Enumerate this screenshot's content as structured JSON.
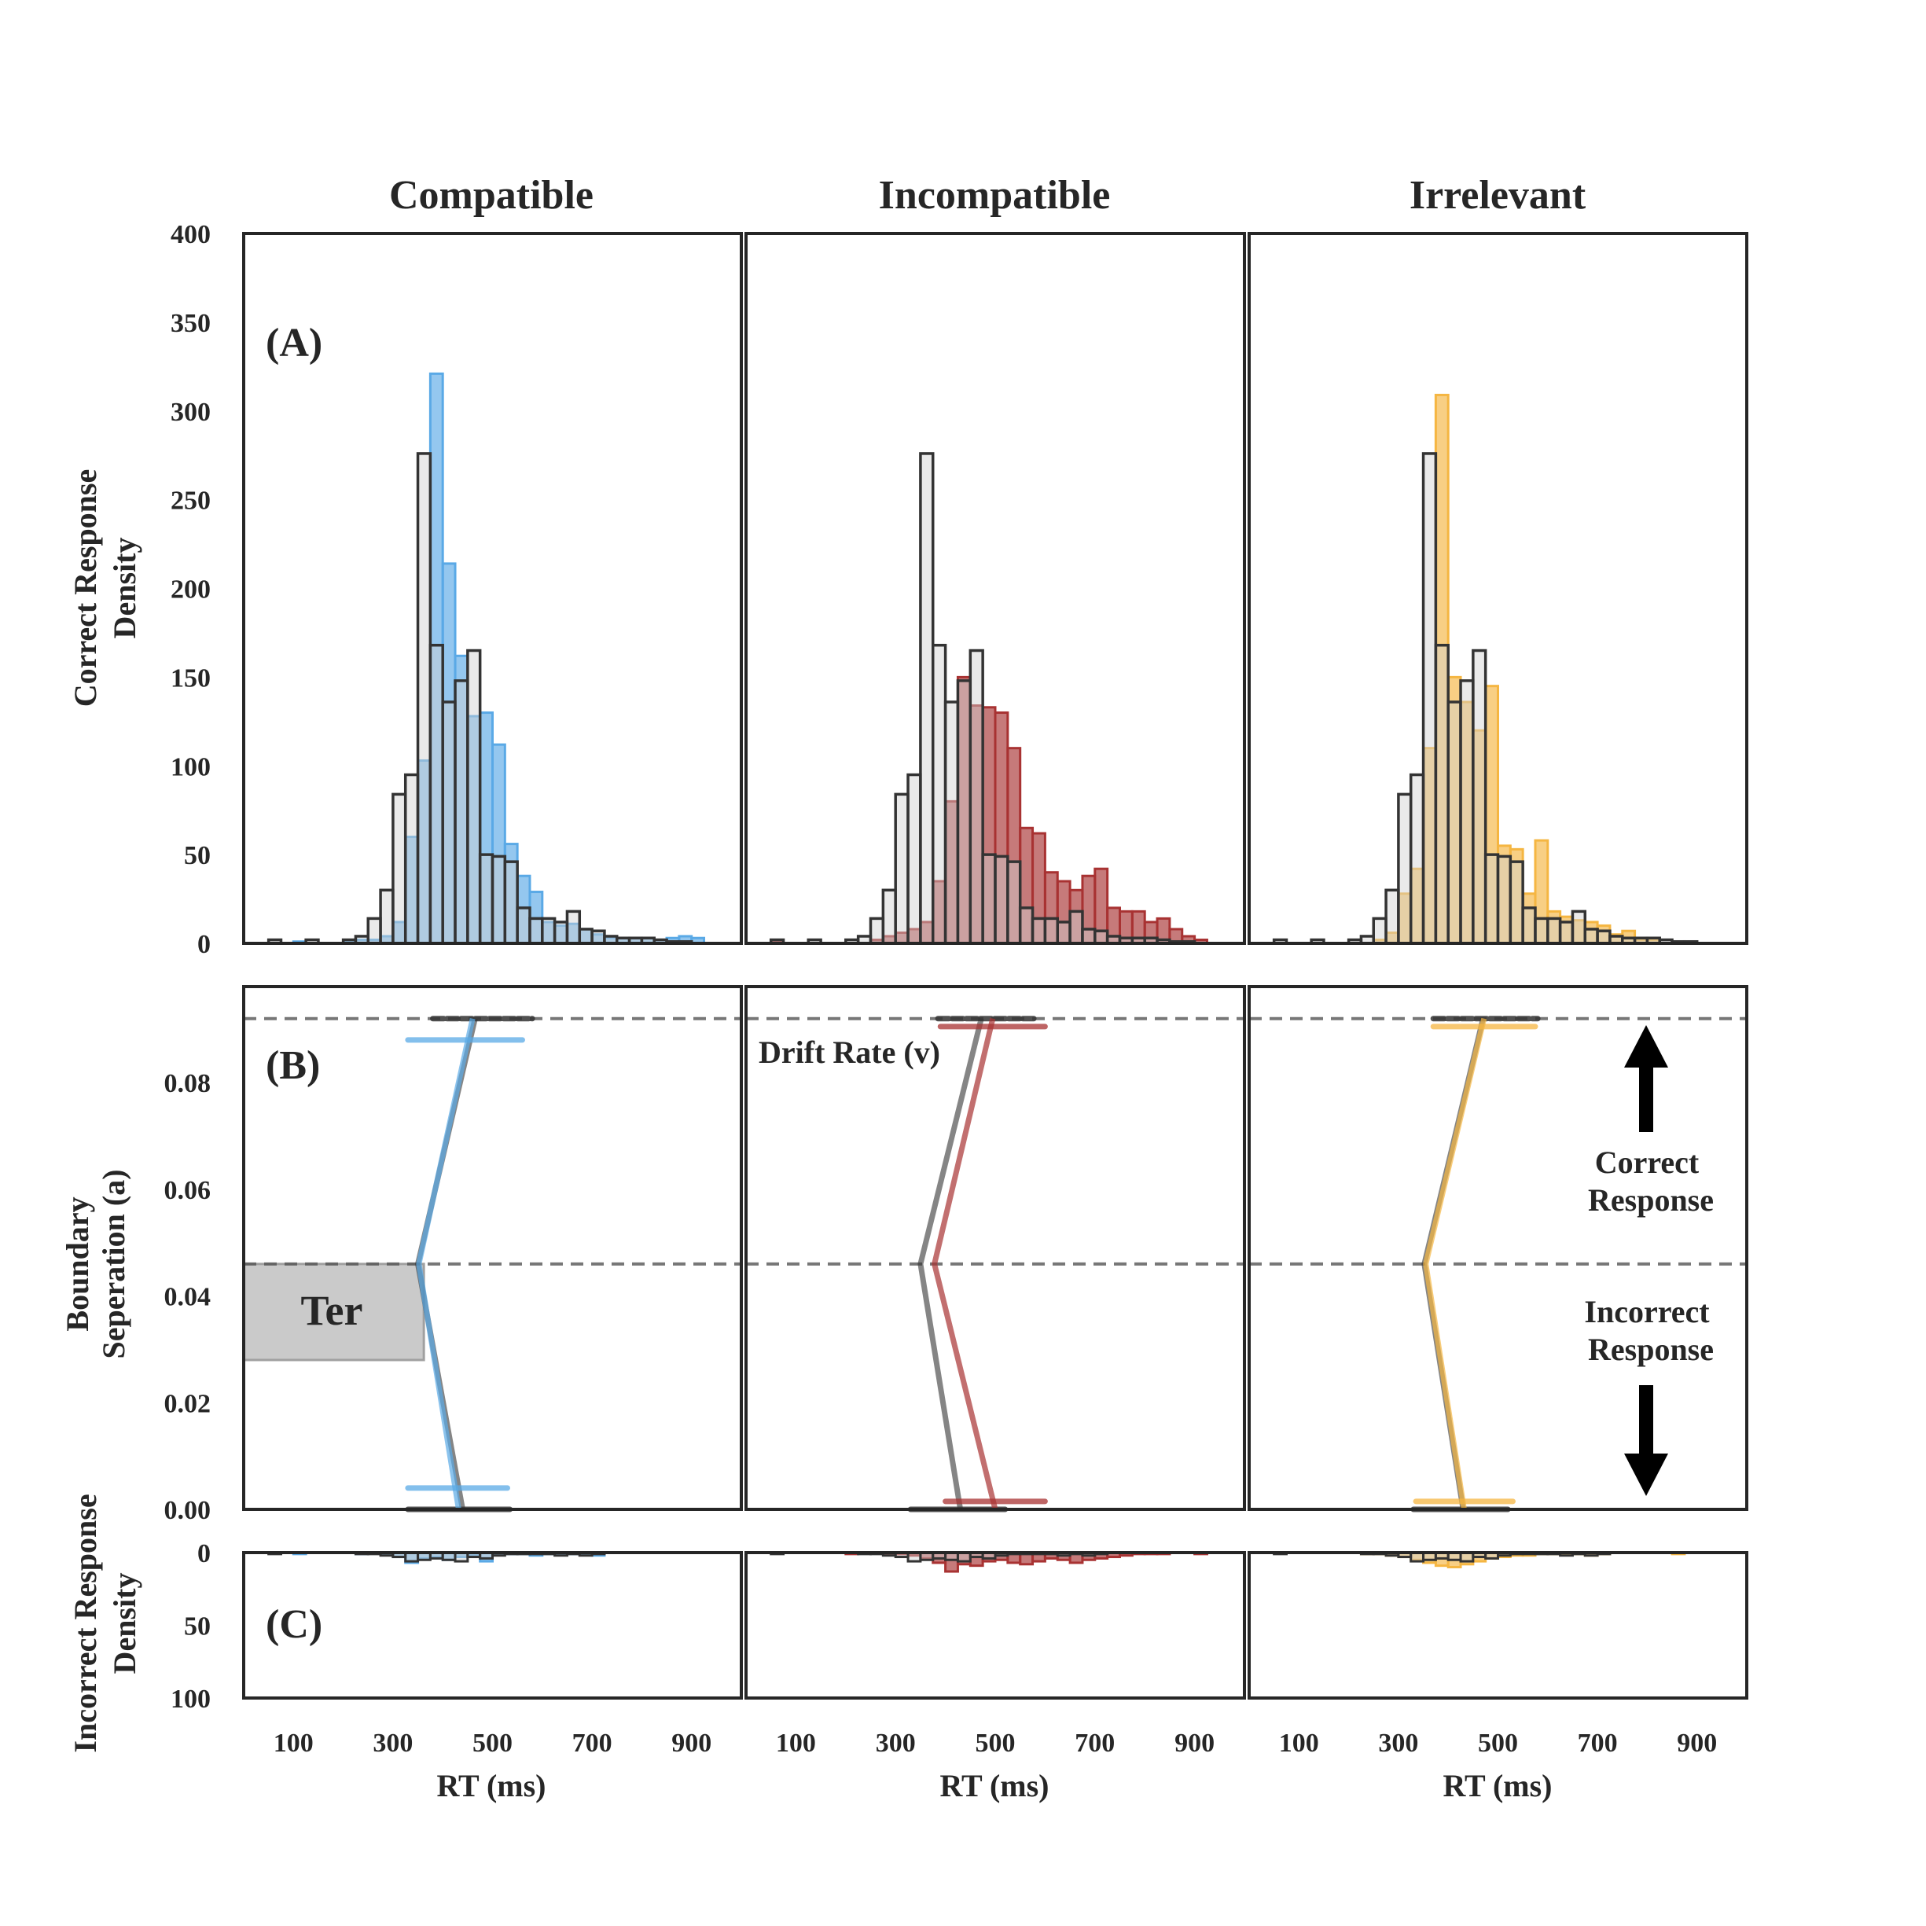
{
  "columns": [
    "Compatible",
    "Incompatible",
    "Irrelevant"
  ],
  "panel_labels": [
    "(A)",
    "(B)",
    "(C)"
  ],
  "annotations": {
    "drift_rate": "Drift Rate (v)",
    "correct_response": [
      "Correct",
      "Response"
    ],
    "incorrect_response": [
      "Incorrect",
      "Response"
    ],
    "ter": "Ter"
  },
  "colors": {
    "compatible": "#5aa9e6",
    "incompatible": "#a83232",
    "irrelevant": "#f5b642",
    "reference": "#d0d0d0",
    "reference_edge": "#333333",
    "ter_box": "#bdbdbd"
  },
  "chart_data": [
    {
      "type": "bar",
      "panel": "A",
      "ylabel": [
        "Correct Response",
        "Density"
      ],
      "xlim": [
        0,
        1000
      ],
      "ylim": [
        0,
        400
      ],
      "yticks": [
        0,
        50,
        100,
        150,
        200,
        250,
        300,
        350,
        400
      ],
      "bin_width": 25,
      "bin_starts": [
        50,
        75,
        100,
        125,
        150,
        175,
        200,
        225,
        250,
        275,
        300,
        325,
        350,
        375,
        400,
        425,
        450,
        475,
        500,
        525,
        550,
        575,
        600,
        625,
        650,
        675,
        700,
        725,
        750,
        775,
        800,
        825,
        850,
        875,
        900,
        925,
        950
      ],
      "series": [
        {
          "name": "Compatible",
          "values": [
            0,
            0,
            1,
            0,
            0,
            0,
            1,
            2,
            2,
            4,
            12,
            60,
            103,
            321,
            214,
            162,
            128,
            130,
            112,
            56,
            38,
            29,
            12,
            10,
            11,
            8,
            5,
            3,
            3,
            3,
            3,
            2,
            3,
            4,
            3,
            0,
            0
          ]
        },
        {
          "name": "Incompatible",
          "values": [
            1,
            0,
            0,
            0,
            0,
            0,
            0,
            0,
            2,
            4,
            6,
            8,
            12,
            35,
            80,
            150,
            134,
            133,
            130,
            110,
            65,
            62,
            40,
            35,
            30,
            38,
            42,
            20,
            18,
            18,
            12,
            14,
            8,
            4,
            2,
            0,
            0
          ]
        },
        {
          "name": "Irrelevant",
          "values": [
            0,
            0,
            0,
            0,
            0,
            0,
            0,
            0,
            2,
            6,
            28,
            42,
            110,
            309,
            150,
            136,
            120,
            145,
            55,
            53,
            28,
            58,
            18,
            15,
            13,
            12,
            10,
            5,
            7,
            2,
            2,
            0,
            0,
            0,
            0,
            0,
            0
          ]
        },
        {
          "name": "",
          "values": [
            2,
            0,
            0,
            2,
            0,
            0,
            2,
            4,
            14,
            30,
            84,
            95,
            276,
            168,
            136,
            148,
            165,
            50,
            49,
            46,
            20,
            14,
            14,
            12,
            18,
            8,
            7,
            4,
            3,
            3,
            3,
            2,
            1,
            1,
            0,
            0,
            0
          ]
        }
      ]
    },
    {
      "type": "line",
      "panel": "B",
      "ylabel": [
        "Boundary",
        "Seperation (a)"
      ],
      "xlim": [
        0,
        1000
      ],
      "ylim": [
        0,
        0.098
      ],
      "yticks": [
        0.0,
        0.02,
        0.04,
        0.06,
        0.08
      ],
      "ytick_labels": [
        "0.00",
        "0.02",
        "0.04",
        "0.06",
        "0.08"
      ],
      "upper_boundary": 0.092,
      "starting_point": 0.046,
      "ter_box": {
        "x": [
          0,
          362
        ],
        "y": [
          0.028,
          0.046
        ]
      },
      "series": [
        {
          "name": "Compatible",
          "x": [
            460,
            352,
            432
          ],
          "y": [
            0.092,
            0.046,
            0.0
          ],
          "upper_error_y": 0.088,
          "upper_error_x": [
            330,
            560
          ],
          "lower_error_y": 0.004,
          "lower_error_x": [
            330,
            530
          ]
        },
        {
          "name": "",
          "x": [
            465,
            350,
            440
          ],
          "y": [
            0.092,
            0.046,
            0.0
          ],
          "upper_error_y": 0.092,
          "upper_error_x": [
            380,
            580
          ],
          "lower_error_y": 0.0,
          "lower_error_x": [
            330,
            535
          ]
        },
        {
          "name": "Incompatible",
          "x": [
            495,
            378,
            500
          ],
          "y": [
            0.092,
            0.046,
            0.0
          ],
          "upper_error_y": 0.0905,
          "upper_error_x": [
            390,
            600
          ],
          "lower_error_y": 0.0015,
          "lower_error_x": [
            400,
            600
          ]
        },
        {
          "name": "",
          "x": [
            472,
            350,
            430
          ],
          "y": [
            0.092,
            0.046,
            0.0
          ],
          "upper_error_y": 0.092,
          "upper_error_x": [
            385,
            580
          ],
          "lower_error_y": 0.0,
          "lower_error_x": [
            330,
            520
          ]
        },
        {
          "name": "Irrelevant",
          "x": [
            472,
            355,
            432
          ],
          "y": [
            0.092,
            0.046,
            0.0
          ],
          "upper_error_y": 0.0905,
          "upper_error_x": [
            370,
            575
          ],
          "lower_error_y": 0.0015,
          "lower_error_x": [
            335,
            530
          ]
        },
        {
          "name": "",
          "x": [
            470,
            352,
            430
          ],
          "y": [
            0.092,
            0.046,
            0.0
          ],
          "upper_error_y": 0.092,
          "upper_error_x": [
            370,
            580
          ],
          "lower_error_y": 0.0,
          "lower_error_x": [
            330,
            520
          ]
        }
      ]
    },
    {
      "type": "bar",
      "panel": "C",
      "ylabel": [
        "Incorrect Response",
        "Density"
      ],
      "xlabel": "RT (ms)",
      "xlim": [
        0,
        1000
      ],
      "xticks": [
        100,
        300,
        500,
        700,
        900
      ],
      "ylim": [
        0,
        100
      ],
      "yticks": [
        0,
        50,
        100
      ],
      "inverted": true,
      "bin_width": 25,
      "bin_starts": [
        50,
        75,
        100,
        125,
        150,
        175,
        200,
        225,
        250,
        275,
        300,
        325,
        350,
        375,
        400,
        425,
        450,
        475,
        500,
        525,
        550,
        575,
        600,
        625,
        650,
        675,
        700,
        725,
        750,
        775,
        800,
        825,
        850,
        875,
        900,
        925,
        950
      ],
      "series": [
        {
          "name": "Compatible",
          "values": [
            0,
            0,
            1,
            0,
            0,
            0,
            0,
            1,
            0,
            1,
            3,
            7,
            4,
            3,
            5,
            3,
            2,
            6,
            1,
            1,
            1,
            2,
            1,
            1,
            1,
            1,
            2,
            0,
            0,
            0,
            0,
            0,
            0,
            0,
            0,
            0,
            0
          ]
        },
        {
          "name": "Incompatible",
          "values": [
            0,
            0,
            0,
            0,
            0,
            0,
            1,
            0,
            0,
            1,
            1,
            2,
            4,
            7,
            13,
            8,
            9,
            6,
            5,
            7,
            8,
            6,
            4,
            5,
            7,
            5,
            4,
            3,
            2,
            1,
            1,
            1,
            0,
            0,
            1,
            0,
            0
          ]
        },
        {
          "name": "Irrelevant",
          "values": [
            0,
            0,
            0,
            0,
            0,
            0,
            0,
            1,
            1,
            2,
            3,
            5,
            7,
            9,
            10,
            8,
            6,
            4,
            3,
            2,
            2,
            1,
            1,
            1,
            1,
            2,
            1,
            0,
            0,
            0,
            0,
            0,
            1,
            0,
            0,
            0,
            0
          ]
        },
        {
          "name": "",
          "values": [
            1,
            0,
            0,
            0,
            0,
            0,
            0,
            1,
            1,
            2,
            3,
            6,
            5,
            4,
            5,
            6,
            3,
            4,
            2,
            1,
            1,
            1,
            1,
            2,
            1,
            2,
            1,
            0,
            0,
            0,
            0,
            0,
            0,
            0,
            0,
            0,
            0
          ]
        }
      ]
    }
  ]
}
